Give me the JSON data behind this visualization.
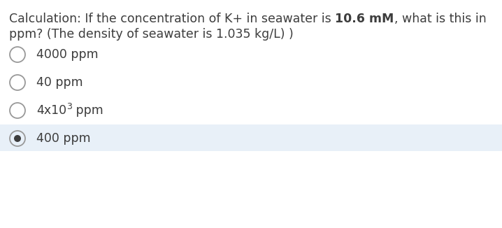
{
  "background_color": "#ffffff",
  "highlight_color": "#e8f0f8",
  "question_line1_normal": "Calculation: If the concentration of K+ in seawater is ",
  "question_bold": "10.6 mM",
  "question_line1_end": ", what is this in",
  "question_line2": "ppm? (The density of seawater is 1.035 kg/L) )",
  "options": [
    {
      "label": "4000 ppm",
      "selected": false,
      "special": false
    },
    {
      "label": "40 ppm",
      "selected": false,
      "special": false
    },
    {
      "label": "400 ppm",
      "selected": true,
      "special": false
    }
  ],
  "option3_base": "4x10",
  "option3_sup": "3",
  "option3_suffix": " ppm",
  "text_color": "#3d3d3d",
  "circle_edge_color": "#999999",
  "font_size_question": 12.5,
  "font_size_options": 12.5
}
